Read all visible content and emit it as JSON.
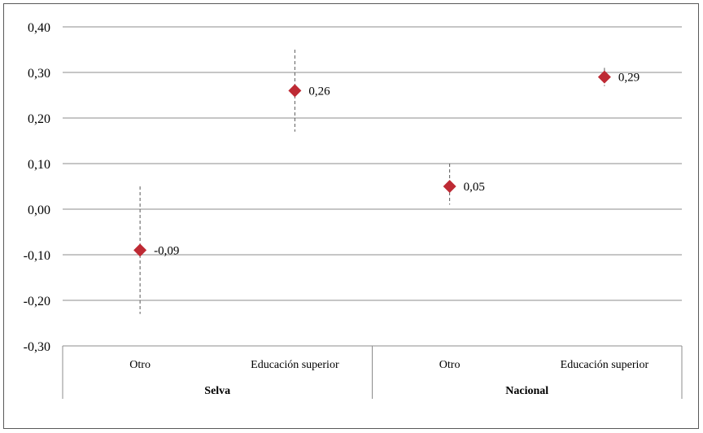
{
  "chart_data": {
    "type": "scatter",
    "title": "",
    "xlabel": "",
    "ylabel": "",
    "ylim": [
      -0.3,
      0.4
    ],
    "yticks": [
      "0,40",
      "0,30",
      "0,20",
      "0,10",
      "0,00",
      "-0,10",
      "-0,20",
      "-0,30"
    ],
    "ytick_values": [
      0.4,
      0.3,
      0.2,
      0.1,
      0.0,
      -0.1,
      -0.2,
      -0.3
    ],
    "grid": true,
    "legend": "none",
    "groups": [
      "Selva",
      "Nacional"
    ],
    "categories": [
      "Otro",
      "Educación superior",
      "Otro",
      "Educación superior"
    ],
    "points": [
      {
        "group": "Selva",
        "category": "Otro",
        "value": -0.09,
        "label": "-0,09",
        "ci_low": -0.23,
        "ci_high": 0.05
      },
      {
        "group": "Selva",
        "category": "Educación superior",
        "value": 0.26,
        "label": "0,26",
        "ci_low": 0.17,
        "ci_high": 0.35
      },
      {
        "group": "Nacional",
        "category": "Otro",
        "value": 0.05,
        "label": "0,05",
        "ci_low": 0.01,
        "ci_high": 0.1
      },
      {
        "group": "Nacional",
        "category": "Educación superior",
        "value": 0.29,
        "label": "0,29",
        "ci_low": 0.27,
        "ci_high": 0.31
      }
    ],
    "colors": {
      "marker": "#be2a34",
      "grid": "#8c8c8c",
      "errorbar": "#595959"
    }
  }
}
